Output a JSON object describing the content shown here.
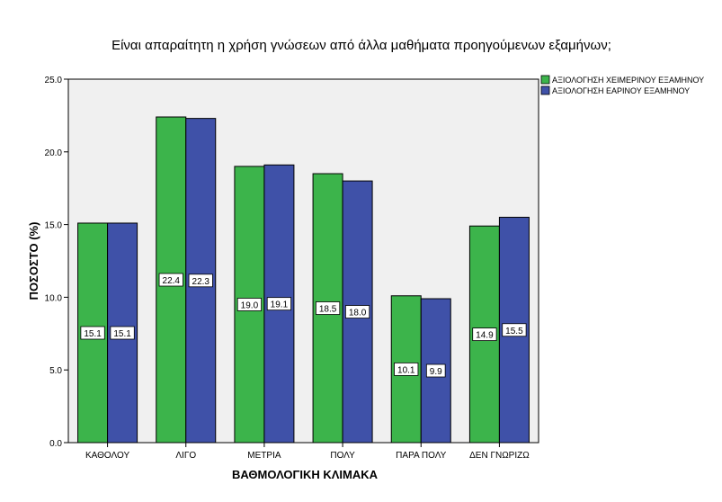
{
  "chart_data": {
    "type": "bar",
    "title": "Είναι απαραίτητη η χρήση γνώσεων από άλλα μαθήματα προηγούμενων εξαμήνων;",
    "xlabel": "ΒΑΘΜΟΛΟΓΙΚΗ ΚΛΙΜΑΚΑ",
    "ylabel": "ΠΟΣΟΣΤΟ (%)",
    "ylim": [
      0,
      25
    ],
    "yticks": [
      "0.0",
      "5.0",
      "10.0",
      "15.0",
      "20.0",
      "25.0"
    ],
    "grid": false,
    "legend_position": "top-right",
    "categories": [
      "ΚΑΘΟΛΟΥ",
      "ΛΙΓΟ",
      "ΜΕΤΡΙΑ",
      "ΠΟΛΥ",
      "ΠΑΡΑ ΠΟΛΥ",
      "ΔΕΝ ΓΝΩΡΙΖΩ"
    ],
    "series": [
      {
        "name": "ΑΞΙΟΛΟΓΗΣΗ ΧΕΙΜΕΡΙΝΟΥ ΕΞΑΜΗΝΟΥ",
        "color": "#3cb44b",
        "values": [
          15.1,
          22.4,
          19.0,
          18.5,
          10.1,
          14.9
        ],
        "labels": [
          "15.1",
          "22.4",
          "19.0",
          "18.5",
          "10.1",
          "14.9"
        ]
      },
      {
        "name": "ΑΞΙΟΛΟΓΗΣΗ ΕΑΡΙΝΟΥ ΕΞΑΜΗΝΟΥ",
        "color": "#3f51a8",
        "values": [
          15.1,
          22.3,
          19.1,
          18.0,
          9.9,
          15.5
        ],
        "labels": [
          "15.1",
          "22.3",
          "19.1",
          "18.0",
          "9.9",
          "15.5"
        ]
      }
    ],
    "plot_background": "#f0f0f0"
  }
}
